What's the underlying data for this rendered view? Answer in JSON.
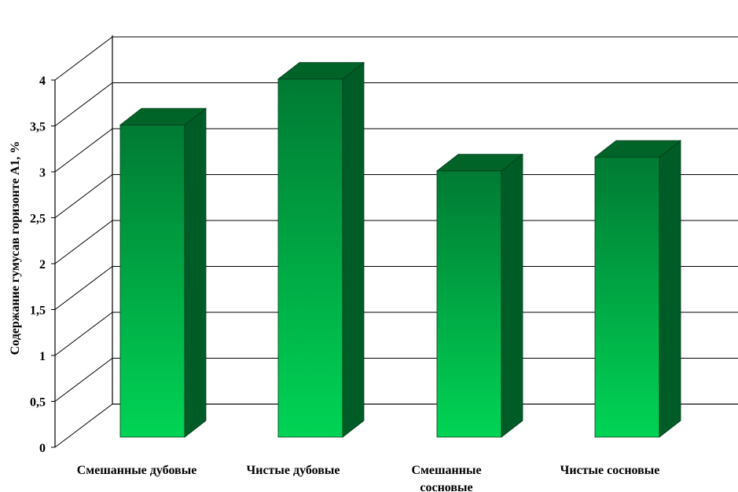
{
  "chart_data": {
    "type": "bar",
    "ylabel": "Содержание гумусав горизонте А1, %",
    "categories": [
      [
        "Смешанные дубовые"
      ],
      [
        "Чистые дубовые"
      ],
      [
        "Смешанные",
        "сосновые"
      ],
      [
        "Чистые сосновые"
      ]
    ],
    "values": [
      3.4,
      3.9,
      2.9,
      3.05
    ],
    "ylim": [
      0,
      4
    ],
    "yticks": [
      "0",
      "0,5",
      "1",
      "1,5",
      "2",
      "2,5",
      "3",
      "3,5",
      "4"
    ],
    "grid": true,
    "colors": {
      "front_top": "#007a33",
      "front_bottom": "#00d455",
      "side": "#005c26",
      "top": "#006428",
      "axis": "#000000",
      "grid": "#000000"
    }
  }
}
